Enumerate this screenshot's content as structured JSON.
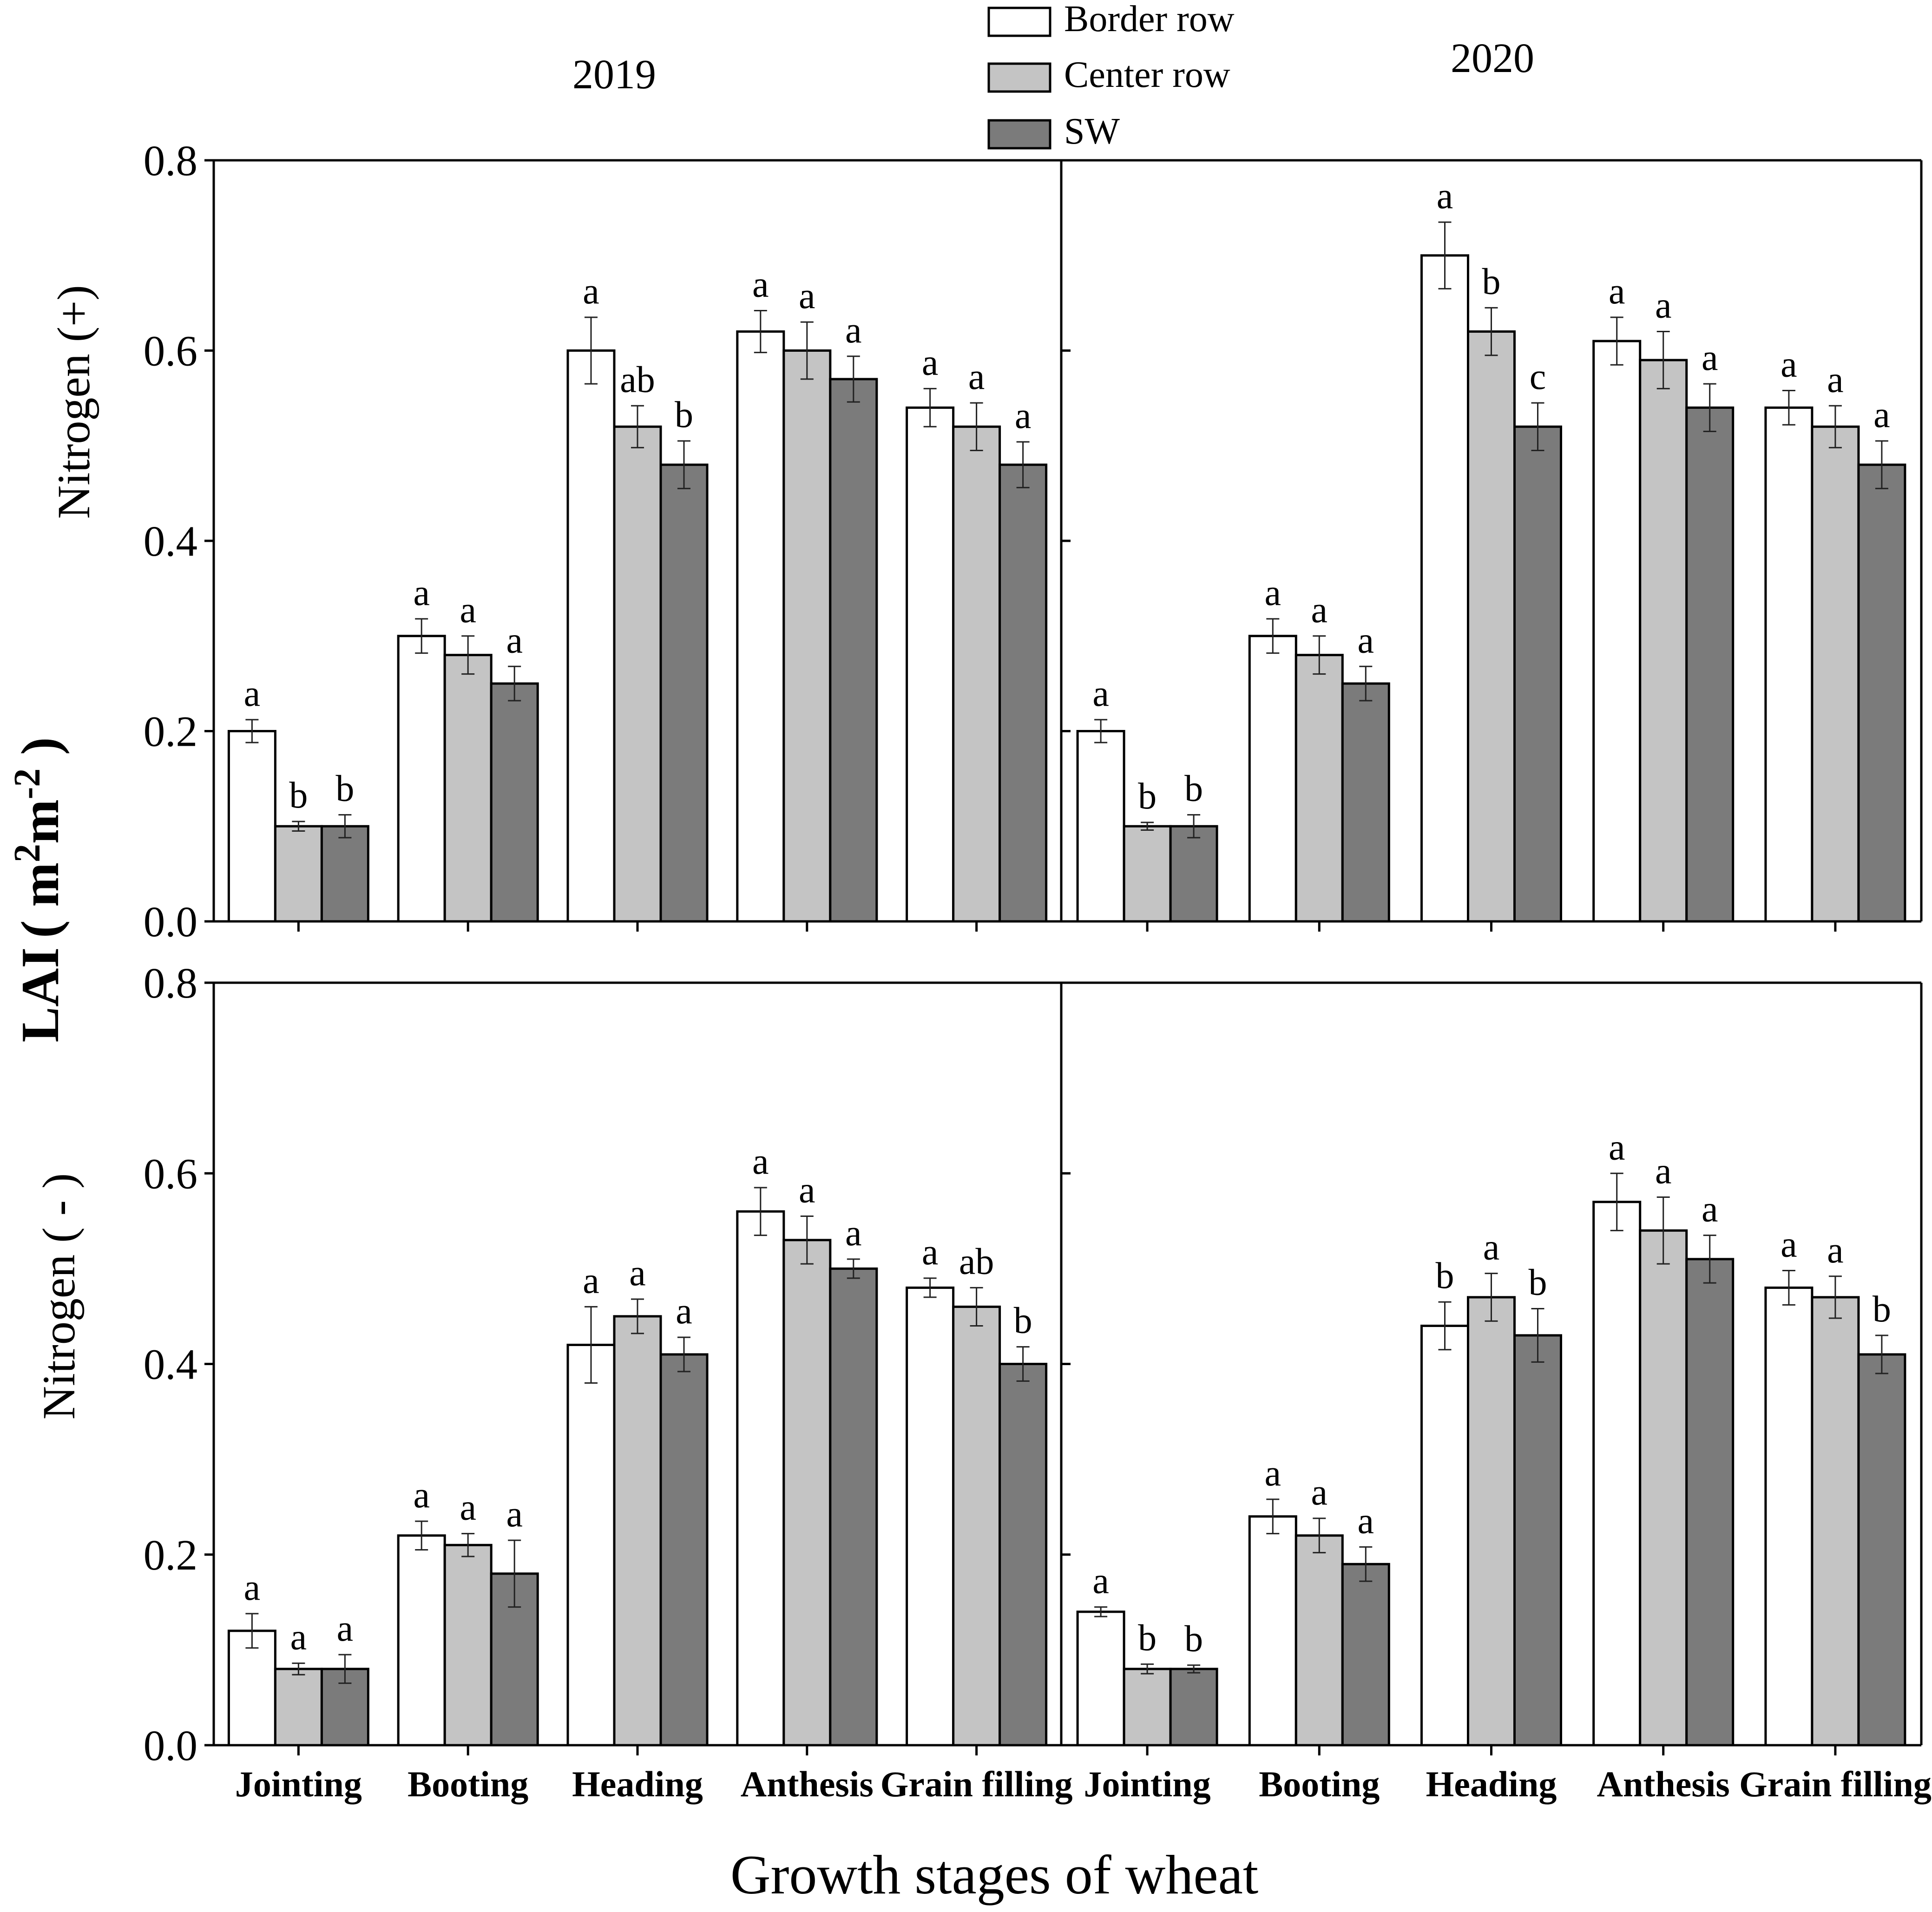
{
  "chart_data": {
    "type": "bar",
    "title": "",
    "xlabel": "Growth stages of wheat",
    "ylabel": {
      "main": "LAI",
      "unit": "( m2m-2 )",
      "unit_base": "m",
      "unit_exp1": "2",
      "unit_exp2": "-2"
    },
    "ylim": [
      0,
      0.8
    ],
    "yticks": [
      "0.0",
      "0.2",
      "0.4",
      "0.6",
      "0.8"
    ],
    "categories": [
      "Jointing",
      "Booting",
      "Heading",
      "Anthesis",
      "Grain filling"
    ],
    "legend": {
      "position": "top-center",
      "entries": [
        {
          "name": "Border row",
          "color": "#ffffff"
        },
        {
          "name": "Center row",
          "color": "#c4c4c4"
        },
        {
          "name": "SW",
          "color": "#7b7b7b"
        }
      ]
    },
    "years": [
      "2019",
      "2020"
    ],
    "rows": [
      "Nitrogen (+)",
      "Nitrogen ( - )"
    ],
    "panels": [
      {
        "year": "2019",
        "nitrogen": "Nitrogen (+)",
        "series": [
          {
            "name": "Border row",
            "values": [
              0.2,
              0.3,
              0.6,
              0.62,
              0.54
            ],
            "errors": [
              0.012,
              0.018,
              0.035,
              0.022,
              0.02
            ],
            "letters": [
              "a",
              "a",
              "a",
              "a",
              "a"
            ]
          },
          {
            "name": "Center row",
            "values": [
              0.1,
              0.28,
              0.52,
              0.6,
              0.52
            ],
            "errors": [
              0.005,
              0.02,
              0.022,
              0.03,
              0.025
            ],
            "letters": [
              "b",
              "a",
              "ab",
              "a",
              "a"
            ]
          },
          {
            "name": "SW",
            "values": [
              0.1,
              0.25,
              0.48,
              0.57,
              0.48
            ],
            "errors": [
              0.012,
              0.018,
              0.025,
              0.024,
              0.024
            ],
            "letters": [
              "b",
              "a",
              "b",
              "a",
              "a"
            ]
          }
        ]
      },
      {
        "year": "2020",
        "nitrogen": "Nitrogen (+)",
        "series": [
          {
            "name": "Border row",
            "values": [
              0.2,
              0.3,
              0.7,
              0.61,
              0.54
            ],
            "errors": [
              0.012,
              0.018,
              0.035,
              0.025,
              0.018
            ],
            "letters": [
              "a",
              "a",
              "a",
              "a",
              "a"
            ]
          },
          {
            "name": "Center row",
            "values": [
              0.1,
              0.28,
              0.62,
              0.59,
              0.52
            ],
            "errors": [
              0.004,
              0.02,
              0.025,
              0.03,
              0.022
            ],
            "letters": [
              "b",
              "a",
              "b",
              "a",
              "a"
            ]
          },
          {
            "name": "SW",
            "values": [
              0.1,
              0.25,
              0.52,
              0.54,
              0.48
            ],
            "errors": [
              0.012,
              0.018,
              0.025,
              0.025,
              0.025
            ],
            "letters": [
              "b",
              "a",
              "c",
              "a",
              "a"
            ]
          }
        ]
      },
      {
        "year": "2019",
        "nitrogen": "Nitrogen ( - )",
        "series": [
          {
            "name": "Border row",
            "values": [
              0.12,
              0.22,
              0.42,
              0.56,
              0.48
            ],
            "errors": [
              0.018,
              0.015,
              0.04,
              0.025,
              0.01
            ],
            "letters": [
              "a",
              "a",
              "a",
              "a",
              "a"
            ]
          },
          {
            "name": "Center row",
            "values": [
              0.08,
              0.21,
              0.45,
              0.53,
              0.46
            ],
            "errors": [
              0.006,
              0.012,
              0.018,
              0.025,
              0.02
            ],
            "letters": [
              "a",
              "a",
              "a",
              "a",
              "ab"
            ]
          },
          {
            "name": "SW",
            "values": [
              0.08,
              0.18,
              0.41,
              0.5,
              0.4
            ],
            "errors": [
              0.015,
              0.035,
              0.018,
              0.01,
              0.018
            ],
            "letters": [
              "a",
              "a",
              "a",
              "a",
              "b"
            ]
          }
        ]
      },
      {
        "year": "2020",
        "nitrogen": "Nitrogen ( - )",
        "series": [
          {
            "name": "Border row",
            "values": [
              0.14,
              0.24,
              0.44,
              0.57,
              0.48
            ],
            "errors": [
              0.005,
              0.018,
              0.025,
              0.03,
              0.018
            ],
            "letters": [
              "a",
              "a",
              "b",
              "a",
              "a"
            ]
          },
          {
            "name": "Center row",
            "values": [
              0.08,
              0.22,
              0.47,
              0.54,
              0.47
            ],
            "errors": [
              0.005,
              0.018,
              0.025,
              0.035,
              0.022
            ],
            "letters": [
              "b",
              "a",
              "a",
              "a",
              "a"
            ]
          },
          {
            "name": "SW",
            "values": [
              0.08,
              0.19,
              0.43,
              0.51,
              0.41
            ],
            "errors": [
              0.004,
              0.018,
              0.028,
              0.025,
              0.02
            ],
            "letters": [
              "b",
              "a",
              "b",
              "a",
              "b"
            ]
          }
        ]
      }
    ]
  }
}
